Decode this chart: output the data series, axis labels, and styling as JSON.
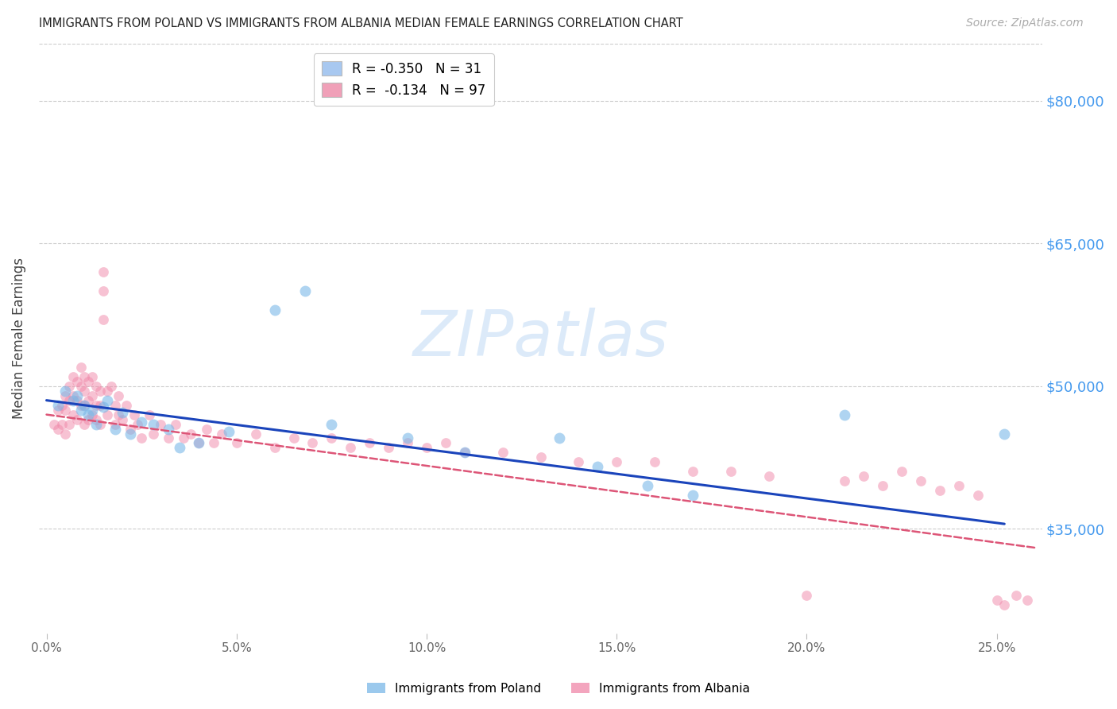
{
  "title": "IMMIGRANTS FROM POLAND VS IMMIGRANTS FROM ALBANIA MEDIAN FEMALE EARNINGS CORRELATION CHART",
  "source": "Source: ZipAtlas.com",
  "ylabel_label": "Median Female Earnings",
  "x_tick_labels": [
    "0.0%",
    "5.0%",
    "10.0%",
    "15.0%",
    "20.0%",
    "25.0%"
  ],
  "x_tick_values": [
    0.0,
    0.05,
    0.1,
    0.15,
    0.2,
    0.25
  ],
  "y_tick_labels": [
    "$35,000",
    "$50,000",
    "$65,000",
    "$80,000"
  ],
  "y_tick_values": [
    35000,
    50000,
    65000,
    80000
  ],
  "xlim": [
    -0.002,
    0.262
  ],
  "ylim": [
    24000,
    86000
  ],
  "legend1_text": "R = -0.350   N = 31",
  "legend2_text": "R =  -0.134   N = 97",
  "legend1_color": "#a8c8f0",
  "legend2_color": "#f0a0b8",
  "poland_color": "#7ab8e8",
  "albania_color": "#f087a8",
  "poland_line_color": "#1a44bb",
  "albania_line_color": "#dd5577",
  "poland_scatter_x": [
    0.003,
    0.005,
    0.007,
    0.008,
    0.009,
    0.01,
    0.011,
    0.012,
    0.013,
    0.015,
    0.016,
    0.018,
    0.02,
    0.022,
    0.025,
    0.028,
    0.032,
    0.035,
    0.04,
    0.048,
    0.06,
    0.068,
    0.075,
    0.095,
    0.11,
    0.135,
    0.145,
    0.158,
    0.17,
    0.21,
    0.252
  ],
  "poland_scatter_y": [
    48000,
    49500,
    48500,
    49000,
    47500,
    48000,
    47000,
    47500,
    46000,
    47800,
    48500,
    45500,
    47200,
    45000,
    46200,
    46000,
    45500,
    43500,
    44000,
    45200,
    58000,
    60000,
    46000,
    44500,
    43000,
    44500,
    41500,
    39500,
    38500,
    47000,
    45000
  ],
  "albania_scatter_x": [
    0.002,
    0.003,
    0.003,
    0.004,
    0.004,
    0.005,
    0.005,
    0.005,
    0.006,
    0.006,
    0.006,
    0.007,
    0.007,
    0.007,
    0.008,
    0.008,
    0.008,
    0.009,
    0.009,
    0.009,
    0.01,
    0.01,
    0.01,
    0.01,
    0.011,
    0.011,
    0.011,
    0.012,
    0.012,
    0.012,
    0.013,
    0.013,
    0.013,
    0.014,
    0.014,
    0.014,
    0.015,
    0.015,
    0.015,
    0.016,
    0.016,
    0.017,
    0.018,
    0.018,
    0.019,
    0.019,
    0.02,
    0.021,
    0.022,
    0.023,
    0.024,
    0.025,
    0.027,
    0.028,
    0.03,
    0.032,
    0.034,
    0.036,
    0.038,
    0.04,
    0.042,
    0.044,
    0.046,
    0.05,
    0.055,
    0.06,
    0.065,
    0.07,
    0.075,
    0.08,
    0.085,
    0.09,
    0.095,
    0.1,
    0.105,
    0.11,
    0.12,
    0.13,
    0.14,
    0.15,
    0.16,
    0.17,
    0.18,
    0.19,
    0.2,
    0.21,
    0.215,
    0.22,
    0.225,
    0.23,
    0.235,
    0.24,
    0.245,
    0.25,
    0.252,
    0.255,
    0.258
  ],
  "albania_scatter_y": [
    46000,
    47500,
    45500,
    48000,
    46000,
    49000,
    47500,
    45000,
    50000,
    48500,
    46000,
    51000,
    49000,
    47000,
    50500,
    48500,
    46500,
    52000,
    50000,
    48000,
    51000,
    49500,
    48000,
    46000,
    50500,
    48500,
    46500,
    51000,
    49000,
    47000,
    50000,
    48000,
    46500,
    49500,
    48000,
    46000,
    57000,
    62000,
    60000,
    49500,
    47000,
    50000,
    48000,
    46000,
    49000,
    47000,
    46500,
    48000,
    45500,
    47000,
    46000,
    44500,
    47000,
    45000,
    46000,
    44500,
    46000,
    44500,
    45000,
    44000,
    45500,
    44000,
    45000,
    44000,
    45000,
    43500,
    44500,
    44000,
    44500,
    43500,
    44000,
    43500,
    44000,
    43500,
    44000,
    43000,
    43000,
    42500,
    42000,
    42000,
    42000,
    41000,
    41000,
    40500,
    28000,
    40000,
    40500,
    39500,
    41000,
    40000,
    39000,
    39500,
    38500,
    27500,
    27000,
    28000,
    27500
  ]
}
